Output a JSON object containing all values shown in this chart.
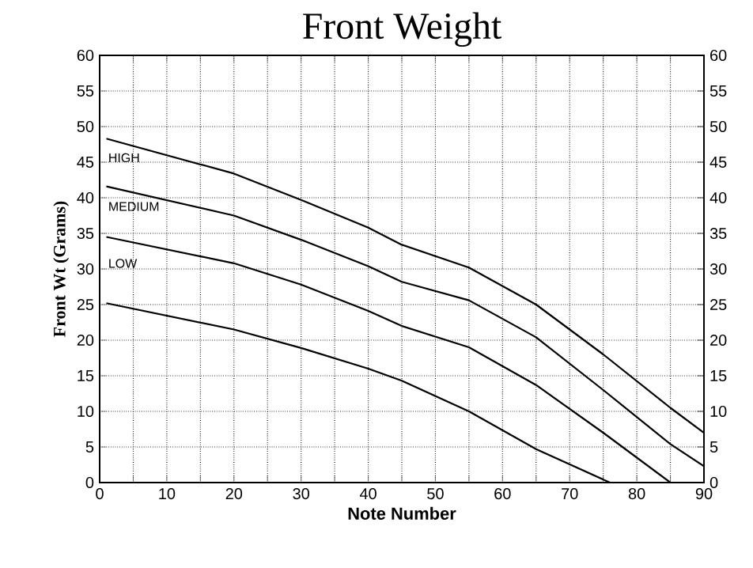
{
  "chart_data": {
    "type": "line",
    "title": "Front Weight",
    "xlabel": "Note Number",
    "ylabel": "Front Wt  (Grams)",
    "xlim": [
      0,
      90
    ],
    "xticks": [
      0,
      {
        "value": 5,
        "label": null
      },
      10,
      {
        "value": 15,
        "label": null
      },
      20,
      {
        "value": 25,
        "label": null
      },
      30,
      {
        "value": 35,
        "label": null
      },
      40,
      {
        "value": 45,
        "label": null
      },
      50,
      {
        "value": 55,
        "label": null
      },
      60,
      {
        "value": 65,
        "label": null
      },
      70,
      {
        "value": 75,
        "label": null
      },
      80,
      {
        "value": 85,
        "label": null
      },
      90
    ],
    "ylim": [
      0,
      60
    ],
    "yticks": [
      0,
      5,
      10,
      15,
      20,
      25,
      30,
      35,
      40,
      45,
      50,
      55,
      60
    ],
    "y2lim": [
      0,
      60
    ],
    "y2ticks": [
      0,
      5,
      10,
      15,
      20,
      25,
      30,
      35,
      40,
      45,
      50,
      55,
      60
    ],
    "grid": true,
    "marker": "none",
    "line_style": "solid",
    "series": [
      {
        "color": "#000000",
        "x": [
          1,
          20,
          30,
          40,
          45,
          55,
          65,
          75,
          85,
          90
        ],
        "values": [
          48.3,
          43.4,
          39.7,
          35.8,
          33.4,
          30.2,
          25,
          18,
          10.5,
          7
        ]
      },
      {
        "color": "#000000",
        "x": [
          1,
          20,
          30,
          40,
          45,
          55,
          65,
          75,
          85,
          90
        ],
        "values": [
          41.6,
          37.5,
          34.1,
          30.4,
          28.2,
          25.6,
          20.4,
          13,
          5.4,
          2.3
        ]
      },
      {
        "color": "#000000",
        "x": [
          1,
          20,
          30,
          40,
          45,
          55,
          65,
          75,
          85
        ],
        "values": [
          34.5,
          30.8,
          27.8,
          24.1,
          22,
          19,
          13.7,
          7,
          0
        ]
      },
      {
        "color": "#000000",
        "x": [
          1,
          20,
          30,
          40,
          45,
          55,
          65,
          76
        ],
        "values": [
          25.2,
          21.5,
          18.9,
          16,
          14.3,
          10,
          4.7,
          0
        ]
      }
    ],
    "annotations": [
      "HIGH",
      "MEDIUM",
      "LOW"
    ]
  }
}
